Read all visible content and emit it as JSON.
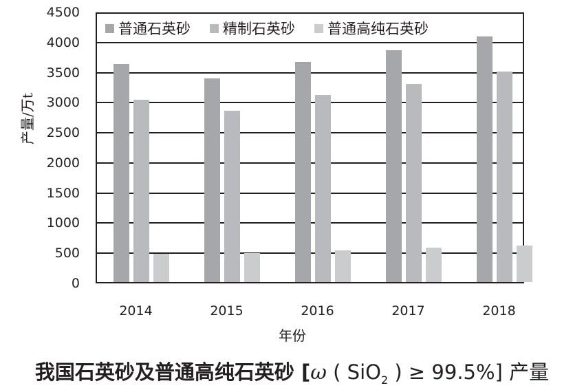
{
  "chart_data": {
    "type": "bar",
    "title": "我国石英砂及普通高纯石英砂 [ω ( SiO₂ ) ≥ 99.5%] 产量",
    "xlabel": "年份",
    "ylabel": "产量/万t",
    "categories": [
      "2014",
      "2015",
      "2016",
      "2017",
      "2018"
    ],
    "series": [
      {
        "name": "普通石英砂",
        "color": "#a6a7aa",
        "values": [
          3640,
          3400,
          3680,
          3870,
          4100
        ]
      },
      {
        "name": "精制石英砂",
        "color": "#b9babd",
        "values": [
          3050,
          2870,
          3130,
          3310,
          3520
        ]
      },
      {
        "name": "普通高纯石英砂",
        "color": "#cbcccd",
        "values": [
          490,
          500,
          550,
          590,
          630
        ]
      }
    ],
    "ylim": [
      0,
      4500
    ],
    "yticks": [
      0,
      500,
      1000,
      1500,
      2000,
      2500,
      3000,
      3500,
      4000,
      4500
    ],
    "grid": true,
    "legend_position": "top-inside"
  },
  "caption": {
    "prefix": "我国石英砂及普通高纯石英砂 [",
    "omega": "ω",
    "open": " ( Si",
    "o": "O",
    "sub": "2",
    "close": " ) ≥ 99.5%] 产量"
  }
}
